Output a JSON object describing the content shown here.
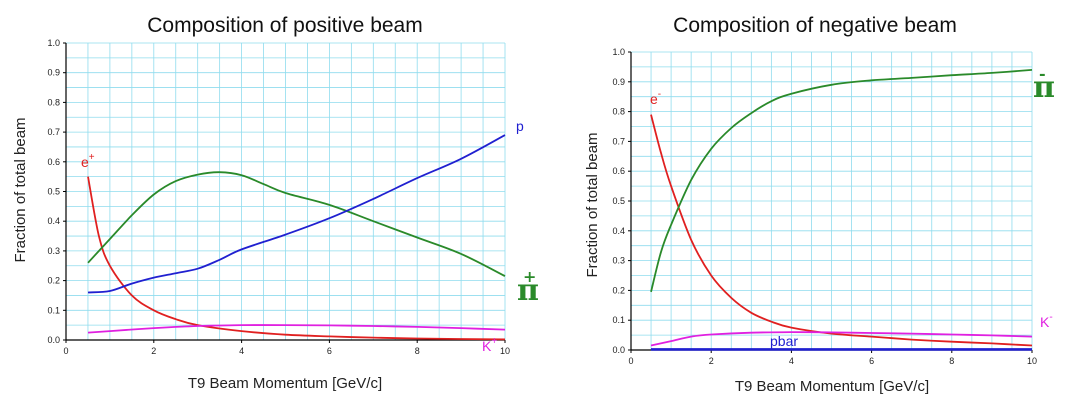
{
  "chart_data": [
    {
      "type": "line",
      "title": "Composition of positive beam",
      "xlabel": "T9 Beam Momentum [GeV/c]",
      "ylabel": "Fraction of total beam",
      "xlim": [
        0,
        10
      ],
      "ylim": [
        0,
        1.0
      ],
      "xticks": [
        "0",
        "2",
        "4",
        "6",
        "8",
        "10"
      ],
      "yticks": [
        "0.0",
        "0.1",
        "0.2",
        "0.3",
        "0.4",
        "0.5",
        "0.6",
        "0.7",
        "0.8",
        "0.9",
        "1.0"
      ],
      "grid": true,
      "series": [
        {
          "name": "e",
          "sup": "+",
          "color": "#e02020",
          "x": [
            0.5,
            0.75,
            1.0,
            1.5,
            2.0,
            2.5,
            3.0,
            4.0,
            5.0,
            6.0,
            7.0,
            8.0,
            10.0
          ],
          "y": [
            0.55,
            0.35,
            0.25,
            0.15,
            0.1,
            0.07,
            0.05,
            0.03,
            0.018,
            0.012,
            0.008,
            0.005,
            0.002
          ]
        },
        {
          "name": "π",
          "sup": "+",
          "color": "#2a8a2a",
          "x": [
            0.5,
            1.0,
            1.5,
            2.0,
            2.5,
            3.0,
            3.5,
            4.0,
            4.5,
            5.0,
            6.0,
            7.0,
            8.0,
            9.0,
            10.0
          ],
          "y": [
            0.26,
            0.34,
            0.42,
            0.49,
            0.535,
            0.557,
            0.565,
            0.555,
            0.525,
            0.495,
            0.455,
            0.4,
            0.345,
            0.29,
            0.215
          ]
        },
        {
          "name": "p",
          "sup": "",
          "color": "#2020d0",
          "x": [
            0.5,
            1.0,
            1.5,
            2.0,
            2.5,
            3.0,
            3.5,
            4.0,
            5.0,
            6.0,
            7.0,
            8.0,
            9.0,
            10.0
          ],
          "y": [
            0.16,
            0.165,
            0.19,
            0.21,
            0.225,
            0.24,
            0.27,
            0.305,
            0.355,
            0.41,
            0.475,
            0.545,
            0.61,
            0.69
          ]
        },
        {
          "name": "K",
          "sup": "+",
          "color": "#e020e0",
          "x": [
            0.5,
            1.0,
            2.0,
            3.0,
            4.0,
            5.0,
            6.0,
            7.0,
            8.0,
            9.0,
            10.0
          ],
          "y": [
            0.025,
            0.03,
            0.04,
            0.047,
            0.05,
            0.05,
            0.049,
            0.047,
            0.044,
            0.04,
            0.035
          ]
        }
      ]
    },
    {
      "type": "line",
      "title": "Composition of negative beam",
      "xlabel": "T9 Beam Momentum [GeV/c]",
      "ylabel": "Fraction of total beam",
      "xlim": [
        0,
        10
      ],
      "ylim": [
        0,
        1.0
      ],
      "xticks": [
        "0",
        "2",
        "4",
        "6",
        "8",
        "10"
      ],
      "yticks": [
        "0.0",
        "0.1",
        "0.2",
        "0.3",
        "0.4",
        "0.5",
        "0.6",
        "0.7",
        "0.8",
        "0.9",
        "1.0"
      ],
      "grid": true,
      "series": [
        {
          "name": "e",
          "sup": "-",
          "color": "#e02020",
          "x": [
            0.5,
            0.75,
            1.0,
            1.5,
            2.0,
            2.5,
            3.0,
            3.5,
            4.0,
            5.0,
            6.0,
            7.0,
            8.0,
            9.0,
            10.0
          ],
          "y": [
            0.79,
            0.66,
            0.55,
            0.37,
            0.25,
            0.175,
            0.125,
            0.095,
            0.075,
            0.055,
            0.045,
            0.035,
            0.028,
            0.022,
            0.015
          ]
        },
        {
          "name": "π",
          "sup": "-",
          "color": "#2a8a2a",
          "x": [
            0.5,
            0.75,
            1.0,
            1.5,
            2.0,
            2.5,
            3.0,
            3.5,
            4.0,
            5.0,
            6.0,
            7.0,
            8.0,
            9.0,
            10.0
          ],
          "y": [
            0.195,
            0.33,
            0.42,
            0.57,
            0.675,
            0.745,
            0.795,
            0.835,
            0.86,
            0.89,
            0.905,
            0.913,
            0.922,
            0.93,
            0.94
          ]
        },
        {
          "name": "pbar",
          "sup": "",
          "color": "#2020d0",
          "x": [
            0.5,
            2.0,
            4.0,
            6.0,
            8.0,
            10.0
          ],
          "y": [
            0.002,
            0.002,
            0.002,
            0.002,
            0.002,
            0.002
          ]
        },
        {
          "name": "K",
          "sup": "-",
          "color": "#e020e0",
          "x": [
            0.5,
            1.0,
            1.5,
            2.0,
            3.0,
            4.0,
            5.0,
            6.0,
            7.0,
            8.0,
            9.0,
            10.0
          ],
          "y": [
            0.015,
            0.03,
            0.045,
            0.052,
            0.058,
            0.06,
            0.059,
            0.057,
            0.055,
            0.052,
            0.049,
            0.045
          ]
        }
      ]
    }
  ]
}
